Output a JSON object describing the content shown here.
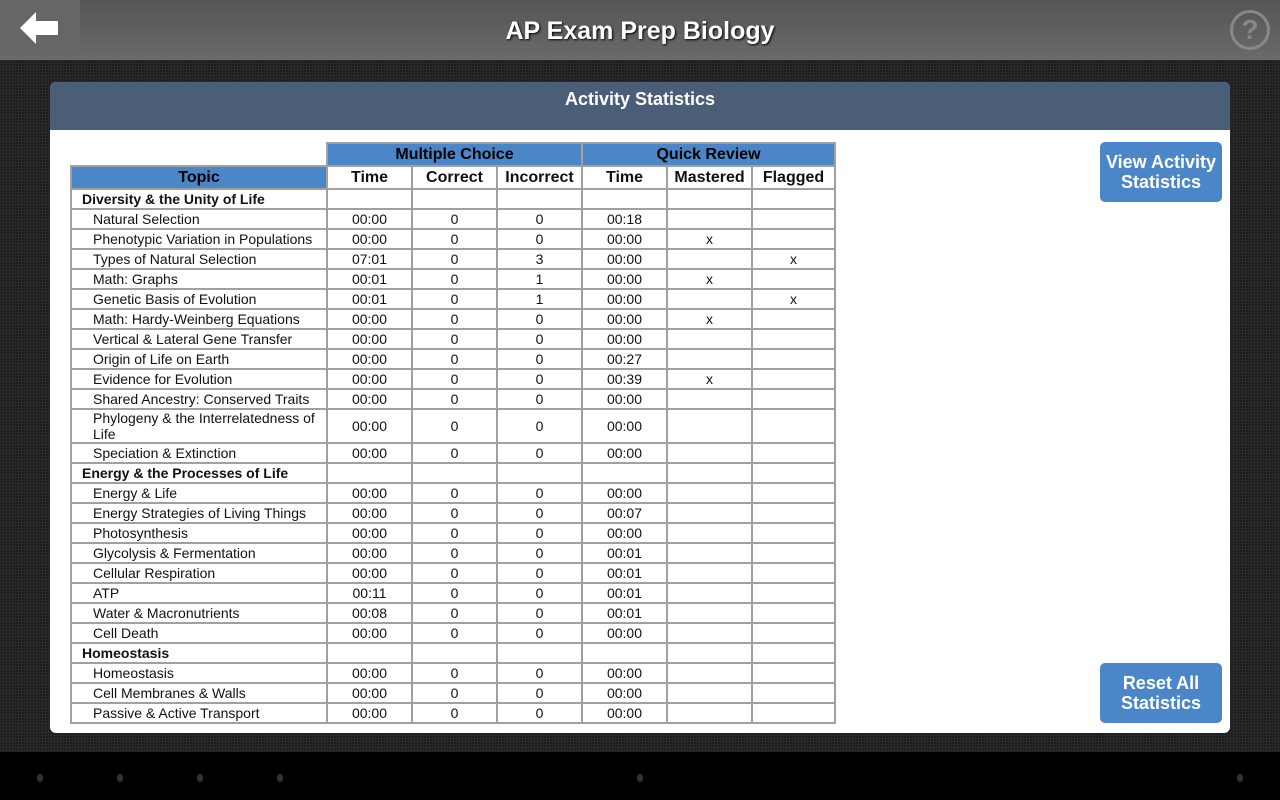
{
  "app": {
    "title": "AP Exam Prep Biology",
    "back_icon": "arrow-left-icon",
    "help_icon": "question-circle-icon",
    "help_glyph": "?"
  },
  "panel": {
    "title": "Activity Statistics"
  },
  "buttons": {
    "view": "View Activity Statistics",
    "reset": "Reset All Statistics"
  },
  "colors": {
    "header_blue": "#4a86c8",
    "panel_header": "#4a5e78"
  },
  "table": {
    "groups": [
      "Multiple Choice",
      "Quick Review"
    ],
    "columns": [
      "Topic",
      "Time",
      "Correct",
      "Incorrect",
      "Time",
      "Mastered",
      "Flagged"
    ],
    "rows": [
      {
        "group": "Diversity & the Unity of Life"
      },
      {
        "cells": [
          "Natural Selection",
          "00:00",
          "0",
          "0",
          "00:18",
          "",
          ""
        ]
      },
      {
        "cells": [
          "Phenotypic Variation in Populations",
          "00:00",
          "0",
          "0",
          "00:00",
          "x",
          ""
        ]
      },
      {
        "cells": [
          "Types of Natural Selection",
          "07:01",
          "0",
          "3",
          "00:00",
          "",
          "x"
        ]
      },
      {
        "cells": [
          "Math: Graphs",
          "00:01",
          "0",
          "1",
          "00:00",
          "x",
          ""
        ]
      },
      {
        "cells": [
          "Genetic Basis of Evolution",
          "00:01",
          "0",
          "1",
          "00:00",
          "",
          "x"
        ]
      },
      {
        "cells": [
          "Math: Hardy-Weinberg Equations",
          "00:00",
          "0",
          "0",
          "00:00",
          "x",
          ""
        ]
      },
      {
        "cells": [
          "Vertical & Lateral Gene Transfer",
          "00:00",
          "0",
          "0",
          "00:00",
          "",
          ""
        ]
      },
      {
        "cells": [
          "Origin of Life on Earth",
          "00:00",
          "0",
          "0",
          "00:27",
          "",
          ""
        ]
      },
      {
        "cells": [
          "Evidence for Evolution",
          "00:00",
          "0",
          "0",
          "00:39",
          "x",
          ""
        ]
      },
      {
        "cells": [
          "Shared Ancestry: Conserved Traits",
          "00:00",
          "0",
          "0",
          "00:00",
          "",
          ""
        ]
      },
      {
        "cells": [
          "Phylogeny & the Interrelatedness of Life",
          "00:00",
          "0",
          "0",
          "00:00",
          "",
          ""
        ]
      },
      {
        "cells": [
          "Speciation & Extinction",
          "00:00",
          "0",
          "0",
          "00:00",
          "",
          ""
        ]
      },
      {
        "group": "Energy & the Processes of Life"
      },
      {
        "cells": [
          "Energy & Life",
          "00:00",
          "0",
          "0",
          "00:00",
          "",
          ""
        ]
      },
      {
        "cells": [
          "Energy Strategies of Living Things",
          "00:00",
          "0",
          "0",
          "00:07",
          "",
          ""
        ]
      },
      {
        "cells": [
          "Photosynthesis",
          "00:00",
          "0",
          "0",
          "00:00",
          "",
          ""
        ]
      },
      {
        "cells": [
          "Glycolysis & Fermentation",
          "00:00",
          "0",
          "0",
          "00:01",
          "",
          ""
        ]
      },
      {
        "cells": [
          "Cellular Respiration",
          "00:00",
          "0",
          "0",
          "00:01",
          "",
          ""
        ]
      },
      {
        "cells": [
          "ATP",
          "00:11",
          "0",
          "0",
          "00:01",
          "",
          ""
        ]
      },
      {
        "cells": [
          "Water & Macronutrients",
          "00:08",
          "0",
          "0",
          "00:01",
          "",
          ""
        ]
      },
      {
        "cells": [
          "Cell Death",
          "00:00",
          "0",
          "0",
          "00:00",
          "",
          ""
        ]
      },
      {
        "group": "Homeostasis"
      },
      {
        "cells": [
          "Homeostasis",
          "00:00",
          "0",
          "0",
          "00:00",
          "",
          ""
        ]
      },
      {
        "cells": [
          "Cell Membranes & Walls",
          "00:00",
          "0",
          "0",
          "00:00",
          "",
          ""
        ]
      },
      {
        "cells": [
          "Passive & Active Transport",
          "00:00",
          "0",
          "0",
          "00:00",
          "",
          ""
        ]
      }
    ]
  }
}
